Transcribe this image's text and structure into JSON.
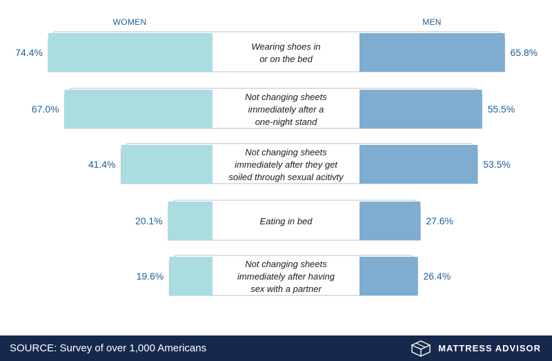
{
  "headers": {
    "left": "WOMEN",
    "right": "MEN"
  },
  "colors": {
    "women": "#a9dde0",
    "men": "#7eadd1",
    "border": "#b9bfc6",
    "value_text": "#1f5f96",
    "footer_bg": "#16294d"
  },
  "chart_data": {
    "type": "bar",
    "subtype": "butterfly",
    "series": [
      {
        "name": "WOMEN",
        "values": [
          74.4,
          67.0,
          41.4,
          20.1,
          19.6
        ]
      },
      {
        "name": "MEN",
        "values": [
          65.8,
          55.5,
          53.5,
          27.6,
          26.4
        ]
      }
    ],
    "categories": [
      [
        "Wearing shoes in",
        "or on the bed"
      ],
      [
        "Not changing sheets",
        "immediately after a",
        "one-night stand"
      ],
      [
        "Not changing sheets",
        "immediately after they get",
        "soiled through sexual acitivty"
      ],
      [
        "Eating in bed"
      ],
      [
        "Not changing sheets",
        "immediately after having",
        "sex with a partner"
      ]
    ],
    "value_labels": {
      "women": [
        "74.4%",
        "67.0%",
        "41.4%",
        "20.1%",
        "19.6%"
      ],
      "men": [
        "65.8%",
        "55.5%",
        "53.5%",
        "27.6%",
        "26.4%"
      ]
    }
  },
  "footer": {
    "source": "SOURCE: Survey of over 1,000 Americans",
    "brand": "MATTRESS ADVISOR",
    "logo_icon": "bed-icon"
  }
}
